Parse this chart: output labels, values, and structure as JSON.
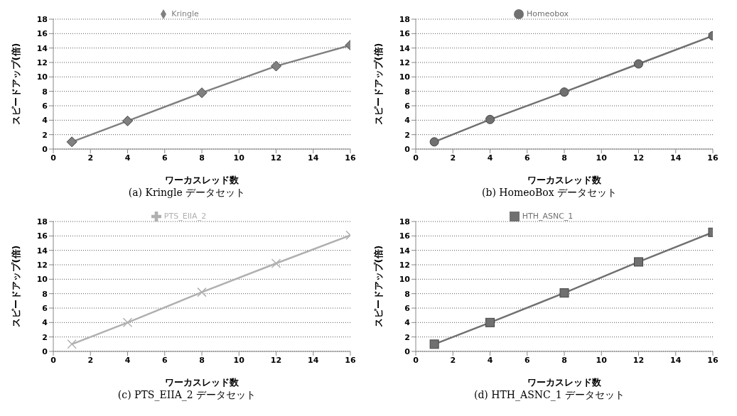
{
  "chart_data": [
    {
      "type": "line",
      "x": [
        1,
        4,
        8,
        12,
        16
      ],
      "series": [
        {
          "name": "Kringle",
          "color": "#808080",
          "values": [
            1,
            3.9,
            7.8,
            11.5,
            14.4
          ]
        }
      ],
      "xlabel": "ワーカスレッド数",
      "ylabel": "スピードアップ(倍)",
      "xlim": [
        0,
        16
      ],
      "xticks": [
        0,
        2,
        4,
        6,
        8,
        10,
        12,
        14,
        16
      ],
      "ylim": [
        0,
        18
      ],
      "yticks": [
        0,
        2,
        4,
        6,
        8,
        10,
        12,
        14,
        16,
        18
      ],
      "grid": "y",
      "legend": "top",
      "marker": "diamond",
      "line_style": "solid",
      "annotations": [
        "(a) Kringle データセット"
      ]
    },
    {
      "type": "line",
      "x": [
        1,
        4,
        8,
        12,
        16
      ],
      "series": [
        {
          "name": "Homeobox",
          "color": "#707070",
          "values": [
            1,
            4.1,
            7.9,
            11.8,
            15.7
          ]
        }
      ],
      "xlabel": "ワーカスレッド数",
      "ylabel": "スピードアップ(倍)",
      "xlim": [
        0,
        16
      ],
      "xticks": [
        0,
        2,
        4,
        6,
        8,
        10,
        12,
        14,
        16
      ],
      "ylim": [
        0,
        18
      ],
      "yticks": [
        0,
        2,
        4,
        6,
        8,
        10,
        12,
        14,
        16,
        18
      ],
      "grid": "y",
      "legend": "top",
      "marker": "circle",
      "line_style": "solid",
      "annotations": [
        "(b) HomeoBox データセット"
      ]
    },
    {
      "type": "line",
      "x": [
        1,
        4,
        8,
        12,
        16
      ],
      "series": [
        {
          "name": "PTS_EIIA_2",
          "color": "#b0b0b0",
          "values": [
            1,
            4,
            8.2,
            12.2,
            16.1
          ]
        }
      ],
      "xlabel": "ワーカスレッド数",
      "ylabel": "スピードアップ(倍)",
      "xlim": [
        0,
        16
      ],
      "xticks": [
        0,
        2,
        4,
        6,
        8,
        10,
        12,
        14,
        16
      ],
      "ylim": [
        0,
        18
      ],
      "yticks": [
        0,
        2,
        4,
        6,
        8,
        10,
        12,
        14,
        16,
        18
      ],
      "grid": "y",
      "legend": "top",
      "marker": "cross",
      "line_style": "solid",
      "annotations": [
        "(c) PTS_EIIA_2 データセット"
      ]
    },
    {
      "type": "line",
      "x": [
        1,
        4,
        8,
        12,
        16
      ],
      "series": [
        {
          "name": "HTH_ASNC_1",
          "color": "#707070",
          "values": [
            1,
            4,
            8.1,
            12.4,
            16.5
          ]
        }
      ],
      "xlabel": "ワーカスレッド数",
      "ylabel": "スピードアップ(倍)",
      "xlim": [
        0,
        16
      ],
      "xticks": [
        0,
        2,
        4,
        6,
        8,
        10,
        12,
        14,
        16
      ],
      "ylim": [
        0,
        18
      ],
      "yticks": [
        0,
        2,
        4,
        6,
        8,
        10,
        12,
        14,
        16,
        18
      ],
      "grid": "y",
      "legend": "top",
      "marker": "square",
      "line_style": "solid",
      "annotations": [
        "(d) HTH_ASNC_1 データセット"
      ]
    }
  ]
}
